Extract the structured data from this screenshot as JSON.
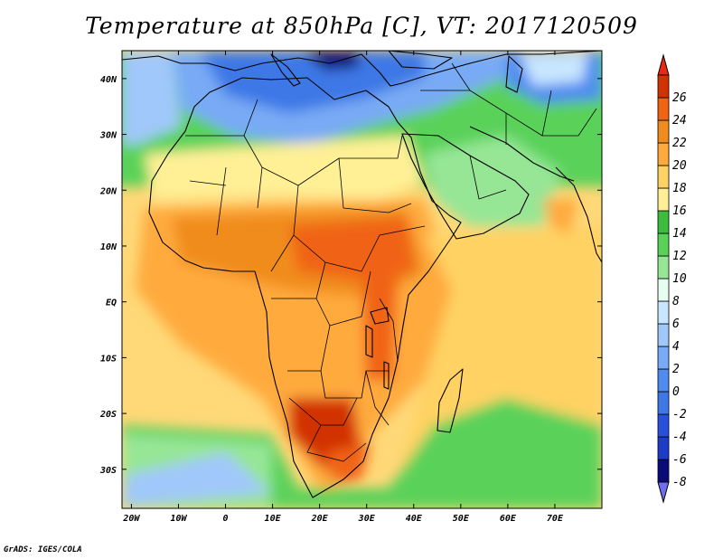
{
  "title": "Temperature at 850hPa [C], VT: 2017120509",
  "credit": "GrADS: IGES/COLA",
  "map": {
    "lon_range": [
      -22,
      80
    ],
    "lat_range": [
      -37,
      45
    ],
    "x_ticks": [
      {
        "value": -20,
        "label": "20W"
      },
      {
        "value": -10,
        "label": "10W"
      },
      {
        "value": 0,
        "label": "0"
      },
      {
        "value": 10,
        "label": "10E"
      },
      {
        "value": 20,
        "label": "20E"
      },
      {
        "value": 30,
        "label": "30E"
      },
      {
        "value": 40,
        "label": "40E"
      },
      {
        "value": 50,
        "label": "50E"
      },
      {
        "value": 60,
        "label": "60E"
      },
      {
        "value": 70,
        "label": "70E"
      }
    ],
    "y_ticks": [
      {
        "value": 40,
        "label": "40N"
      },
      {
        "value": 30,
        "label": "30N"
      },
      {
        "value": 20,
        "label": "20N"
      },
      {
        "value": 10,
        "label": "10N"
      },
      {
        "value": 0,
        "label": "EQ"
      },
      {
        "value": -10,
        "label": "10S"
      },
      {
        "value": -20,
        "label": "20S"
      },
      {
        "value": -30,
        "label": "30S"
      }
    ]
  },
  "colorbar": {
    "levels": [
      "-8",
      "-6",
      "-4",
      "-2",
      "0",
      "2",
      "4",
      "6",
      "8",
      "10",
      "12",
      "14",
      "16",
      "18",
      "20",
      "22",
      "24",
      "26"
    ],
    "colors": [
      "#6e6ef0",
      "#0a0a78",
      "#1e3cc8",
      "#2850dc",
      "#3c78e6",
      "#508cf0",
      "#78aaf5",
      "#a0c8fa",
      "#c8e6ff",
      "#e6fff0",
      "#96e696",
      "#5ad25a",
      "#3cbe3c",
      "#fff096",
      "#ffd264",
      "#ffaa3c",
      "#f08c1e",
      "#f06414",
      "#d23200",
      "#eb2814"
    ]
  }
}
